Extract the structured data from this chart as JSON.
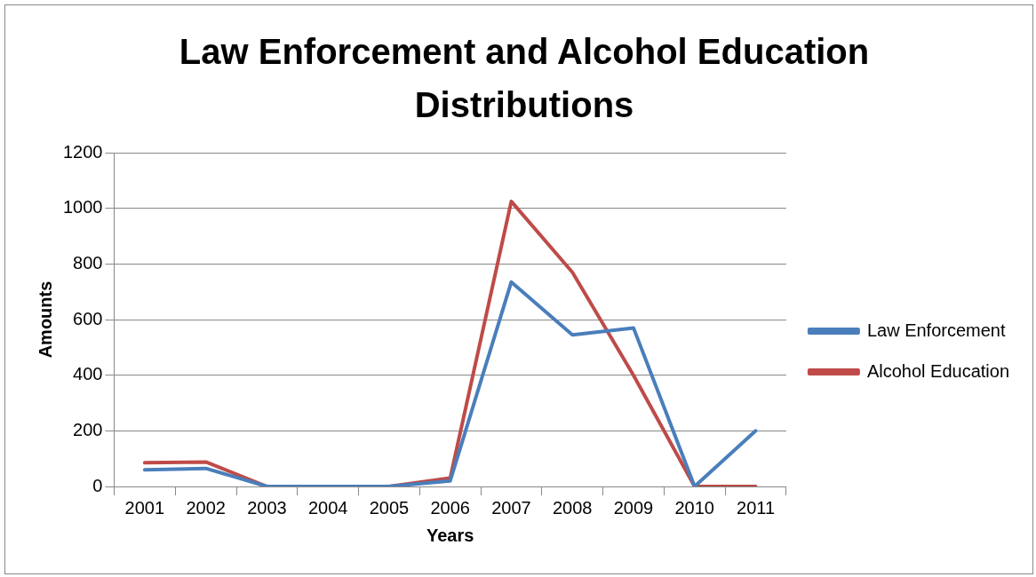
{
  "chart_data": {
    "type": "line",
    "title": "Law Enforcement and Alcohol Education Distributions",
    "xlabel": "Years",
    "ylabel": "Amounts",
    "categories": [
      "2001",
      "2002",
      "2003",
      "2004",
      "2005",
      "2006",
      "2007",
      "2008",
      "2009",
      "2010",
      "2011"
    ],
    "series": [
      {
        "name": "Law Enforcement",
        "color": "#4a7ebb",
        "values": [
          60,
          65,
          0,
          0,
          0,
          20,
          735,
          545,
          570,
          0,
          200
        ]
      },
      {
        "name": "Alcohol Education",
        "color": "#be4b48",
        "values": [
          85,
          88,
          0,
          0,
          0,
          30,
          1025,
          770,
          400,
          0,
          0
        ]
      }
    ],
    "ylim": [
      0,
      1200
    ],
    "yticks": [
      0,
      200,
      400,
      600,
      800,
      1000,
      1200
    ],
    "grid": "y",
    "legend": "right",
    "marker": "none",
    "line_style": "solid"
  }
}
